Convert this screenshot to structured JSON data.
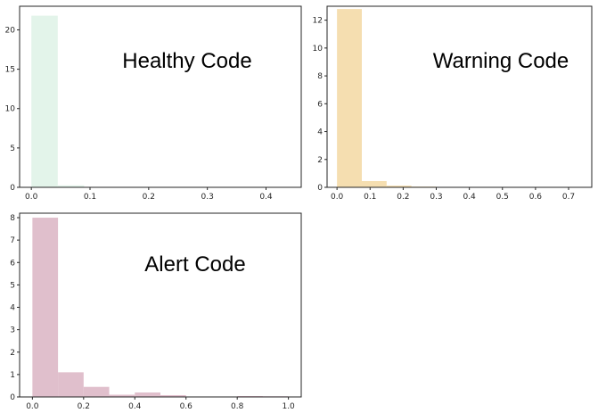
{
  "chart_data": [
    {
      "type": "bar",
      "title": "",
      "annotation": "Healthy Code",
      "color": "#e3f4ea",
      "xlim": [
        -0.02,
        0.46
      ],
      "ylim": [
        0,
        23
      ],
      "xticks": [
        0.0,
        0.1,
        0.2,
        0.3,
        0.4
      ],
      "xtick_labels": [
        "0.0",
        "0.1",
        "0.2",
        "0.3",
        "0.4"
      ],
      "yticks": [
        0,
        5,
        10,
        15,
        20
      ],
      "ytick_labels": [
        "0",
        "5",
        "10",
        "15",
        "20"
      ],
      "bin_edges": [
        0.0,
        0.045,
        0.09,
        0.135,
        0.18,
        0.225,
        0.27,
        0.315,
        0.36,
        0.405,
        0.45
      ],
      "values": [
        21.8,
        0.25,
        0.05,
        0.02,
        0.01,
        0.01,
        0.0,
        0.0,
        0.0,
        0.01
      ],
      "xlabel": "",
      "ylabel": ""
    },
    {
      "type": "bar",
      "title": "",
      "annotation": "Warning Code",
      "color": "#f5deb0",
      "xlim": [
        -0.03,
        0.77
      ],
      "ylim": [
        0,
        13
      ],
      "xticks": [
        0.0,
        0.1,
        0.2,
        0.3,
        0.4,
        0.5,
        0.6,
        0.7
      ],
      "xtick_labels": [
        "0.0",
        "0.1",
        "0.2",
        "0.3",
        "0.4",
        "0.5",
        "0.6",
        "0.7"
      ],
      "yticks": [
        0,
        2,
        4,
        6,
        8,
        10,
        12
      ],
      "ytick_labels": [
        "0",
        "2",
        "4",
        "6",
        "8",
        "10",
        "12"
      ],
      "bin_edges": [
        0.0,
        0.075,
        0.15,
        0.225,
        0.3,
        0.375,
        0.45,
        0.525,
        0.6,
        0.675,
        0.75
      ],
      "values": [
        12.8,
        0.45,
        0.12,
        0.05,
        0.02,
        0.01,
        0.01,
        0.0,
        0.0,
        0.01
      ],
      "xlabel": "",
      "ylabel": ""
    },
    {
      "type": "bar",
      "title": "",
      "annotation": "Alert Code",
      "color": "#e0bfcc",
      "xlim": [
        -0.05,
        1.05
      ],
      "ylim": [
        0,
        8.2
      ],
      "xticks": [
        0.0,
        0.2,
        0.4,
        0.6,
        0.8,
        1.0
      ],
      "xtick_labels": [
        "0.0",
        "0.2",
        "0.4",
        "0.6",
        "0.8",
        "1.0"
      ],
      "yticks": [
        0,
        1,
        2,
        3,
        4,
        5,
        6,
        7,
        8
      ],
      "ytick_labels": [
        "0",
        "1",
        "2",
        "3",
        "4",
        "5",
        "6",
        "7",
        "8"
      ],
      "bin_edges": [
        0.0,
        0.1,
        0.2,
        0.3,
        0.4,
        0.5,
        0.6,
        0.7,
        0.8,
        0.9,
        1.0
      ],
      "values": [
        8.0,
        1.1,
        0.45,
        0.1,
        0.2,
        0.08,
        0.02,
        0.02,
        0.04,
        0.03
      ],
      "xlabel": "",
      "ylabel": ""
    }
  ]
}
